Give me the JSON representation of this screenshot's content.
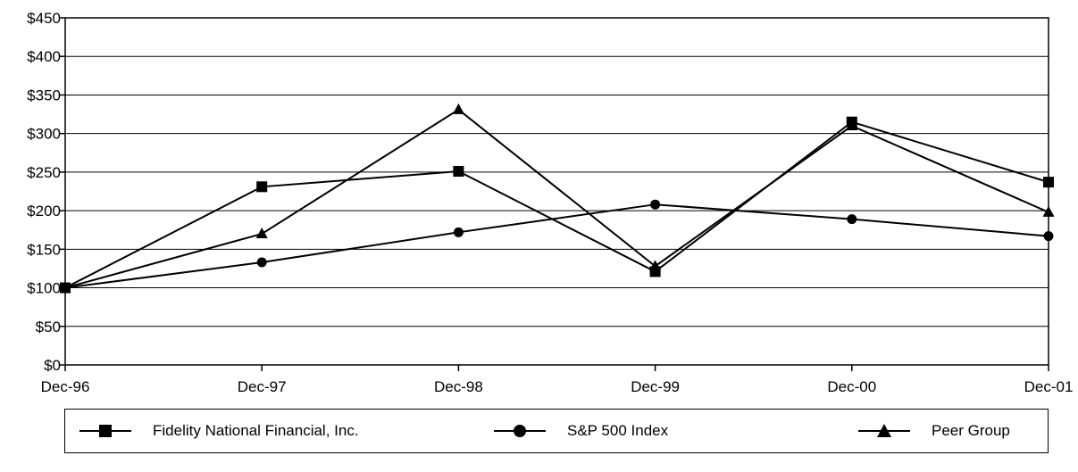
{
  "chart_data": {
    "type": "line",
    "categories": [
      "Dec-96",
      "Dec-97",
      "Dec-98",
      "Dec-99",
      "Dec-00",
      "Dec-01"
    ],
    "ylim": [
      0,
      450
    ],
    "yticks": [
      "$0",
      "$50",
      "$100",
      "$150",
      "$200",
      "$250",
      "$300",
      "$350",
      "$400",
      "$450"
    ],
    "ytick_values": [
      0,
      50,
      100,
      150,
      200,
      250,
      300,
      350,
      400,
      450
    ],
    "grid": true,
    "legend_position": "bottom",
    "series": [
      {
        "name": "Fidelity National Financial, Inc.",
        "marker": "square",
        "color": "#000000",
        "values": [
          100,
          231,
          251,
          121,
          315,
          237
        ]
      },
      {
        "name": "S&P 500 Index",
        "marker": "circle",
        "color": "#000000",
        "values": [
          100,
          133,
          172,
          208,
          189,
          167
        ]
      },
      {
        "name": "Peer Group",
        "marker": "triangle",
        "color": "#000000",
        "values": [
          100,
          170,
          331,
          128,
          310,
          198
        ]
      }
    ]
  }
}
